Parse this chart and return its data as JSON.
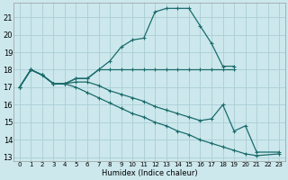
{
  "xlabel": "Humidex (Indice chaleur)",
  "xlim": [
    -0.5,
    23.5
  ],
  "ylim": [
    12.8,
    21.8
  ],
  "yticks": [
    13,
    14,
    15,
    16,
    17,
    18,
    19,
    20,
    21
  ],
  "xticks": [
    0,
    1,
    2,
    3,
    4,
    5,
    6,
    7,
    8,
    9,
    10,
    11,
    12,
    13,
    14,
    15,
    16,
    17,
    18,
    19,
    20,
    21,
    22,
    23
  ],
  "bg_color": "#cce8ed",
  "grid_color": "#aacdd5",
  "line_color": "#1a6b6b",
  "line1_x": [
    0,
    1,
    2,
    3,
    4,
    5,
    6,
    7,
    8,
    9,
    10,
    11,
    12,
    13,
    14,
    15,
    16,
    17,
    18,
    19
  ],
  "line1_y": [
    17,
    18,
    17.7,
    17.2,
    17.2,
    17.5,
    17.5,
    18,
    18.5,
    19.3,
    19.7,
    19.8,
    21.3,
    21.5,
    21.5,
    21.5,
    20.5,
    19.5,
    18.2,
    18.2
  ],
  "line2_x": [
    0,
    1,
    2,
    3,
    4,
    5,
    6,
    7,
    8,
    9,
    10,
    11,
    12,
    13,
    14,
    15,
    16,
    17,
    18,
    19
  ],
  "line2_y": [
    17,
    18,
    17.7,
    17.2,
    17.2,
    17.5,
    17.5,
    18,
    18,
    18,
    18,
    18,
    18,
    18,
    18,
    18,
    18,
    18,
    18,
    18
  ],
  "line3_x": [
    0,
    1,
    2,
    3,
    4,
    5,
    6,
    7,
    8,
    9,
    10,
    11,
    12,
    13,
    14,
    15,
    16,
    17,
    18,
    19,
    20,
    21,
    23
  ],
  "line3_y": [
    17,
    18,
    17.7,
    17.2,
    17.2,
    17.3,
    17.3,
    17.1,
    16.8,
    16.6,
    16.4,
    16.2,
    15.9,
    15.7,
    15.5,
    15.3,
    15.1,
    15.2,
    16.0,
    14.5,
    14.8,
    13.3,
    13.3
  ],
  "line4_x": [
    0,
    1,
    2,
    3,
    4,
    5,
    6,
    7,
    8,
    9,
    10,
    11,
    12,
    13,
    14,
    15,
    16,
    17,
    18,
    19,
    20,
    21,
    23
  ],
  "line4_y": [
    17,
    18,
    17.7,
    17.2,
    17.2,
    17.0,
    16.7,
    16.4,
    16.1,
    15.8,
    15.5,
    15.3,
    15.0,
    14.8,
    14.5,
    14.3,
    14.0,
    13.8,
    13.6,
    13.4,
    13.2,
    13.1,
    13.2
  ]
}
